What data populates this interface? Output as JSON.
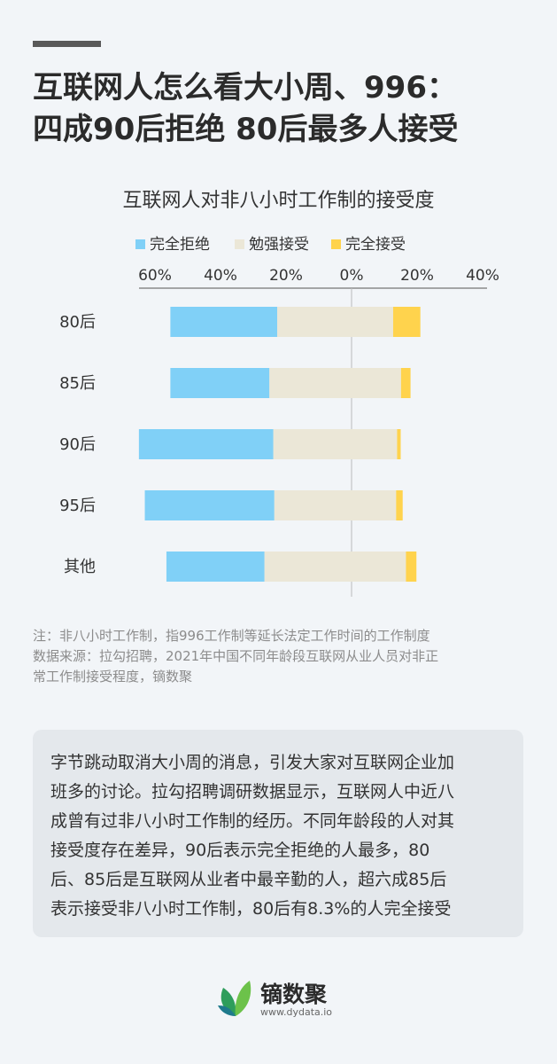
{
  "headline": {
    "line1": "互联网人怎么看大小周、996：",
    "line2": "四成90后拒绝  80后最多人接受"
  },
  "chart_data": {
    "type": "bar",
    "orientation": "horizontal-diverging",
    "title": "互联网人对非八小时工作制的接受度",
    "categories": [
      "80后",
      "85后",
      "90后",
      "95后",
      "其他"
    ],
    "series": [
      {
        "name": "完全拒绝",
        "color": "#80d0f7",
        "side": "left",
        "values": [
          32.6,
          30.2,
          41.0,
          39.5,
          29.9
        ]
      },
      {
        "name": "勉强接受",
        "color": "#ebe7d7",
        "side": "left",
        "values": [
          25.4,
          30.2,
          27.8,
          27.2,
          33.2
        ]
      },
      {
        "name": "完全接受",
        "color": "#ffd34d",
        "side": "right",
        "values": [
          8.3,
          2.9,
          1.1,
          2.0,
          3.2
        ]
      }
    ],
    "xlim": [
      -70,
      40
    ],
    "xticks": [
      {
        "value": -60,
        "label": "60%"
      },
      {
        "value": -40,
        "label": "40%"
      },
      {
        "value": -20,
        "label": "20%"
      },
      {
        "value": 0,
        "label": "0%"
      },
      {
        "value": 20,
        "label": "20%"
      },
      {
        "value": 40,
        "label": "40%"
      }
    ],
    "legend_position": "top",
    "grid": false
  },
  "note": {
    "line1": "注：非八小时工作制，指996工作制等延长法定工作时间的工作制度",
    "line2": "数据来源：拉勾招聘，2021年中国不同年龄段互联网从业人员对非正",
    "line3": "常工作制接受程度，镝数聚"
  },
  "summary": {
    "lines": [
      "字节跳动取消大小周的消息，引发大家对互联网企业加",
      "班多的讨论。拉勾招聘调研数据显示，互联网人中近八",
      "成曾有过非八小时工作制的经历。不同年龄段的人对其",
      "接受度存在差异，90后表示完全拒绝的人最多，80",
      "后、85后是互联网从业者中最辛勤的人，超六成85后",
      "表示接受非八小时工作制，80后有8.3%的人完全接受"
    ]
  },
  "brand": {
    "name": "镝数聚",
    "url": "www.dydata.io",
    "logo_icon": "leaf-logo-icon"
  }
}
